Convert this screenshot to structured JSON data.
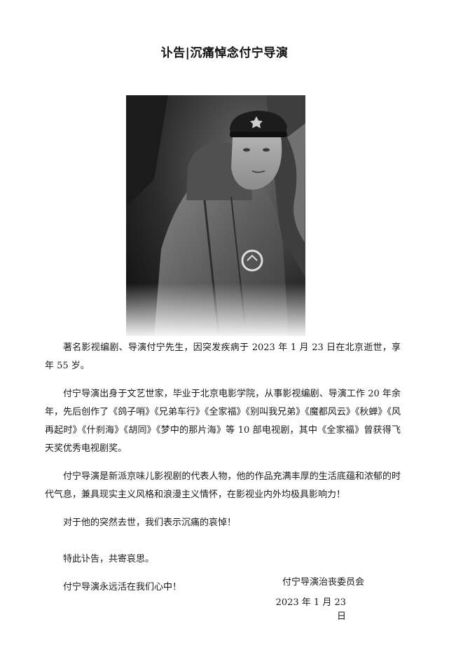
{
  "title": "讣告|沉痛悼念付宁导演",
  "paragraphs": [
    "著名影视编剧、导演付宁先生，因突发疾病于 2023 年 1 月 23 日在北京逝世，享年 55 岁。",
    "付宁导演出身于文艺世家，毕业于北京电影学院，从事影视编剧、导演工作 20 年余年，先后创作了《鸽子哨》《兄弟车行》《全家福》《别叫我兄弟》《魔都风云》《秋蝉》《风再起时》《什刹海》《胡同》《梦中的那片海》等 10 部电视剧，其中《全家福》曾获得飞天奖优秀电视剧奖。",
    "付宁导演是新派京味儿影视剧的代表人物，他的作品充满丰厚的生活底蕴和浓郁的时代气息，兼具现实主义风格和浪漫主义情怀，在影视业内外均极具影响力！",
    "对于他的突然去世，我们表示沉痛的哀悼！",
    "特此讣告，共寄哀思。",
    "付宁导演永远活在我们心中！"
  ],
  "signature": {
    "org": "付宁导演治丧委员会",
    "date": "2023 年 1 月 23 日"
  }
}
